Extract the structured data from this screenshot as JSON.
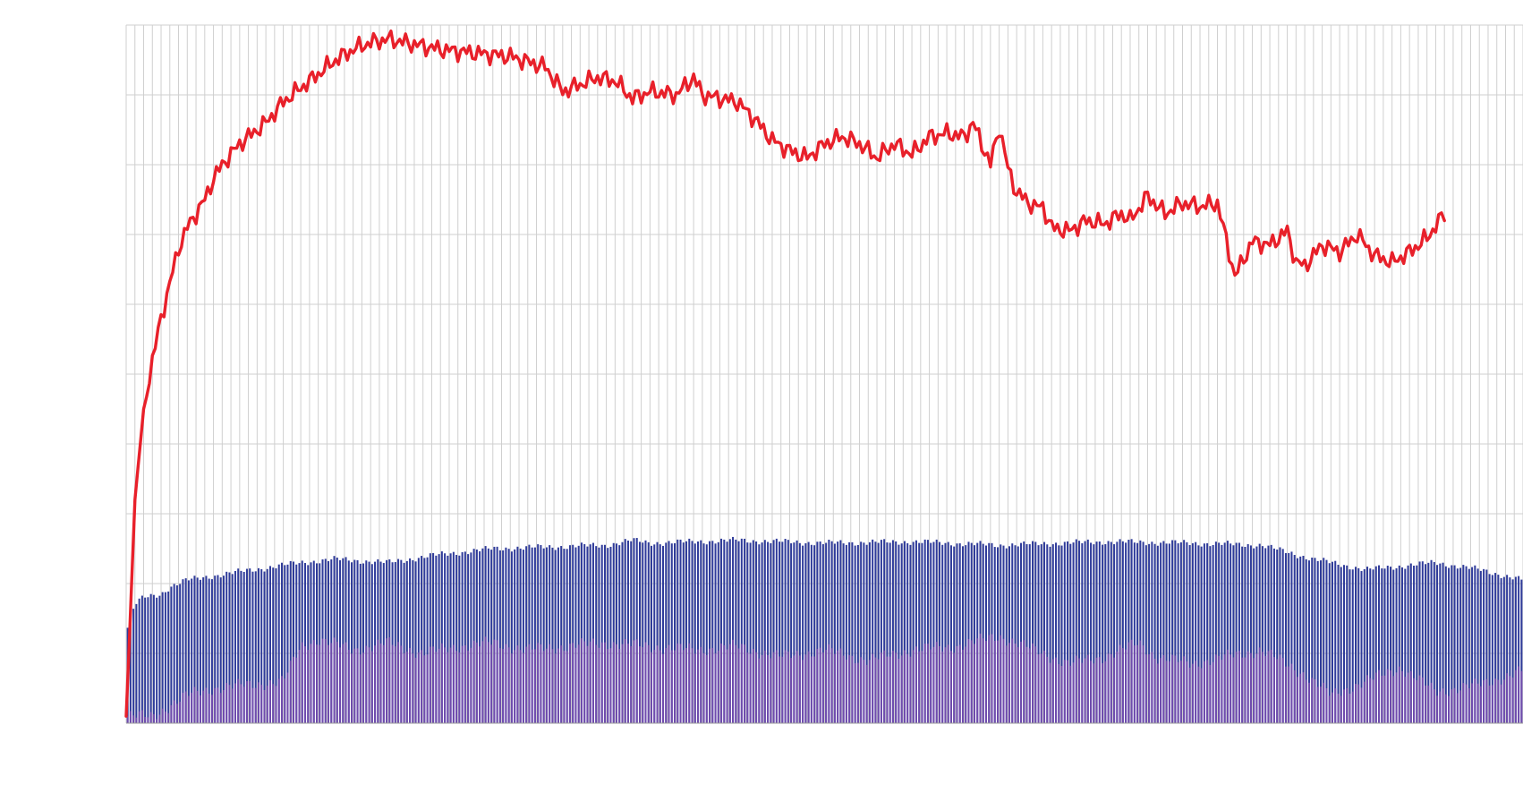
{
  "chart_data": {
    "type": "bar",
    "title": "",
    "xlabel": "",
    "ylabel": "",
    "ylim": [
      0,
      10
    ],
    "grid": true,
    "legend": "none",
    "x_count": 160,
    "background_bars": {
      "color": "#2f3b9a",
      "knots": [
        [
          0,
          1.3
        ],
        [
          1,
          1.7
        ],
        [
          2,
          1.8
        ],
        [
          4,
          1.85
        ],
        [
          5,
          1.95
        ],
        [
          7,
          2.05
        ],
        [
          12,
          2.15
        ],
        [
          20,
          2.3
        ],
        [
          24,
          2.35
        ],
        [
          30,
          2.3
        ],
        [
          35,
          2.4
        ],
        [
          42,
          2.5
        ],
        [
          55,
          2.55
        ],
        [
          58,
          2.62
        ],
        [
          60,
          2.58
        ],
        [
          70,
          2.62
        ],
        [
          80,
          2.58
        ],
        [
          90,
          2.6
        ],
        [
          100,
          2.55
        ],
        [
          112,
          2.6
        ],
        [
          122,
          2.58
        ],
        [
          130,
          2.55
        ],
        [
          136,
          2.35
        ],
        [
          142,
          2.2
        ],
        [
          150,
          2.3
        ],
        [
          155,
          2.2
        ],
        [
          160,
          2.05
        ]
      ]
    },
    "overlay_bars": {
      "color": "#7a4fb0",
      "knots": [
        [
          0,
          0.1
        ],
        [
          3,
          0.1
        ],
        [
          7,
          0.4
        ],
        [
          10,
          0.5
        ],
        [
          14,
          0.55
        ],
        [
          18,
          0.6
        ],
        [
          20,
          1.1
        ],
        [
          22,
          1.2
        ],
        [
          26,
          1.05
        ],
        [
          30,
          1.15
        ],
        [
          34,
          1.0
        ],
        [
          38,
          1.1
        ],
        [
          42,
          1.15
        ],
        [
          46,
          1.05
        ],
        [
          50,
          1.1
        ],
        [
          55,
          1.15
        ],
        [
          60,
          1.1
        ],
        [
          65,
          1.05
        ],
        [
          70,
          1.1
        ],
        [
          75,
          0.95
        ],
        [
          80,
          1.05
        ],
        [
          85,
          0.9
        ],
        [
          90,
          1.05
        ],
        [
          95,
          1.1
        ],
        [
          100,
          1.25
        ],
        [
          104,
          1.05
        ],
        [
          108,
          0.85
        ],
        [
          112,
          0.95
        ],
        [
          116,
          1.15
        ],
        [
          118,
          0.95
        ],
        [
          122,
          0.85
        ],
        [
          126,
          0.95
        ],
        [
          130,
          1.05
        ],
        [
          135,
          0.7
        ],
        [
          138,
          0.4
        ],
        [
          142,
          0.6
        ],
        [
          146,
          0.8
        ],
        [
          150,
          0.45
        ],
        [
          155,
          0.55
        ],
        [
          160,
          0.75
        ]
      ]
    },
    "line": {
      "color": "#e8202a",
      "knots": [
        [
          0,
          0.1
        ],
        [
          0.4,
          1.3
        ],
        [
          1,
          3.2
        ],
        [
          2,
          4.5
        ],
        [
          3,
          5.2
        ],
        [
          4,
          5.8
        ],
        [
          5,
          6.3
        ],
        [
          6,
          6.8
        ],
        [
          7,
          7.1
        ],
        [
          8,
          7.3
        ],
        [
          9,
          7.5
        ],
        [
          10,
          7.8
        ],
        [
          11,
          8.0
        ],
        [
          12,
          8.15
        ],
        [
          13,
          8.3
        ],
        [
          14,
          8.4
        ],
        [
          15,
          8.5
        ],
        [
          16,
          8.6
        ],
        [
          18,
          8.9
        ],
        [
          20,
          9.1
        ],
        [
          22,
          9.3
        ],
        [
          24,
          9.5
        ],
        [
          26,
          9.65
        ],
        [
          28,
          9.75
        ],
        [
          30,
          9.8
        ],
        [
          32,
          9.75
        ],
        [
          34,
          9.7
        ],
        [
          36,
          9.65
        ],
        [
          40,
          9.6
        ],
        [
          44,
          9.55
        ],
        [
          48,
          9.4
        ],
        [
          50,
          9.05
        ],
        [
          54,
          9.25
        ],
        [
          56,
          9.2
        ],
        [
          58,
          8.95
        ],
        [
          60,
          9.05
        ],
        [
          63,
          9.0
        ],
        [
          65,
          9.25
        ],
        [
          66,
          9.0
        ],
        [
          68,
          8.95
        ],
        [
          70,
          8.9
        ],
        [
          72,
          8.65
        ],
        [
          74,
          8.35
        ],
        [
          76,
          8.2
        ],
        [
          78,
          8.1
        ],
        [
          80,
          8.3
        ],
        [
          82,
          8.4
        ],
        [
          84,
          8.3
        ],
        [
          86,
          8.1
        ],
        [
          88,
          8.3
        ],
        [
          90,
          8.15
        ],
        [
          92,
          8.4
        ],
        [
          94,
          8.45
        ],
        [
          96,
          8.4
        ],
        [
          97,
          8.6
        ],
        [
          99,
          8.0
        ],
        [
          100,
          8.55
        ],
        [
          101,
          7.95
        ],
        [
          102,
          7.6
        ],
        [
          104,
          7.4
        ],
        [
          105,
          7.4
        ],
        [
          106,
          7.1
        ],
        [
          108,
          7.05
        ],
        [
          110,
          7.2
        ],
        [
          112,
          7.15
        ],
        [
          114,
          7.3
        ],
        [
          115,
          7.2
        ],
        [
          117,
          7.55
        ],
        [
          119,
          7.3
        ],
        [
          121,
          7.45
        ],
        [
          123,
          7.4
        ],
        [
          125,
          7.45
        ],
        [
          127,
          6.4
        ],
        [
          129,
          6.9
        ],
        [
          131,
          6.85
        ],
        [
          133,
          7.05
        ],
        [
          134,
          6.6
        ],
        [
          135,
          6.55
        ],
        [
          137,
          6.85
        ],
        [
          139,
          6.75
        ],
        [
          141,
          7.0
        ],
        [
          143,
          6.7
        ],
        [
          145,
          6.6
        ],
        [
          147,
          6.75
        ],
        [
          149,
          6.95
        ],
        [
          151,
          7.3
        ]
      ]
    }
  }
}
